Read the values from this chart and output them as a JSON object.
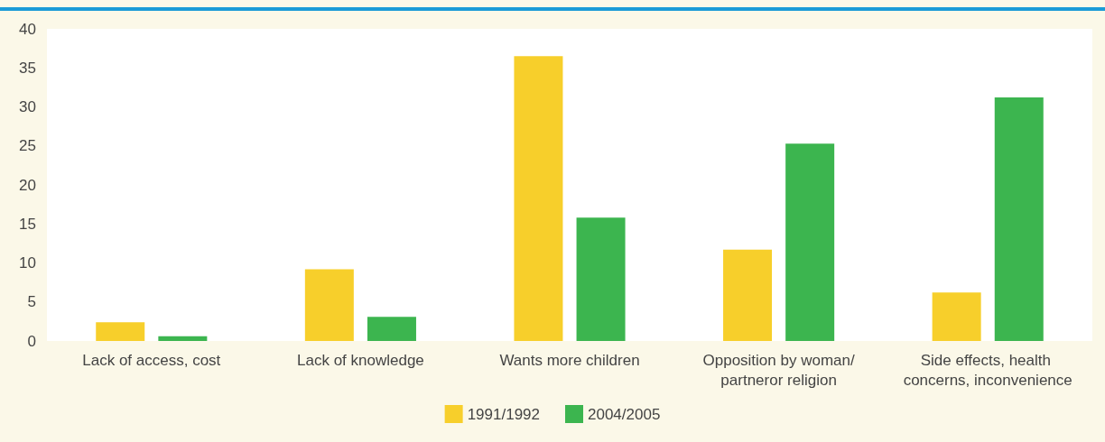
{
  "chart_data": {
    "type": "bar",
    "categories": [
      "Lack of access, cost",
      "Lack of knowledge",
      "Wants more children",
      "Opposition by woman/partneror religion",
      "Side effects, health concerns, inconvenience"
    ],
    "series": [
      {
        "name": "1991/1992",
        "color": "#f7cf2b",
        "values": [
          2.4,
          9.2,
          36.5,
          11.7,
          6.2
        ]
      },
      {
        "name": "2004/2005",
        "color": "#3cb54f",
        "values": [
          0.6,
          3.1,
          15.8,
          25.3,
          31.2
        ]
      }
    ],
    "ylim": [
      0,
      40
    ],
    "yticks": [
      0,
      5,
      10,
      15,
      20,
      25,
      30,
      35,
      40
    ],
    "grid": false,
    "legend": "bottom"
  }
}
